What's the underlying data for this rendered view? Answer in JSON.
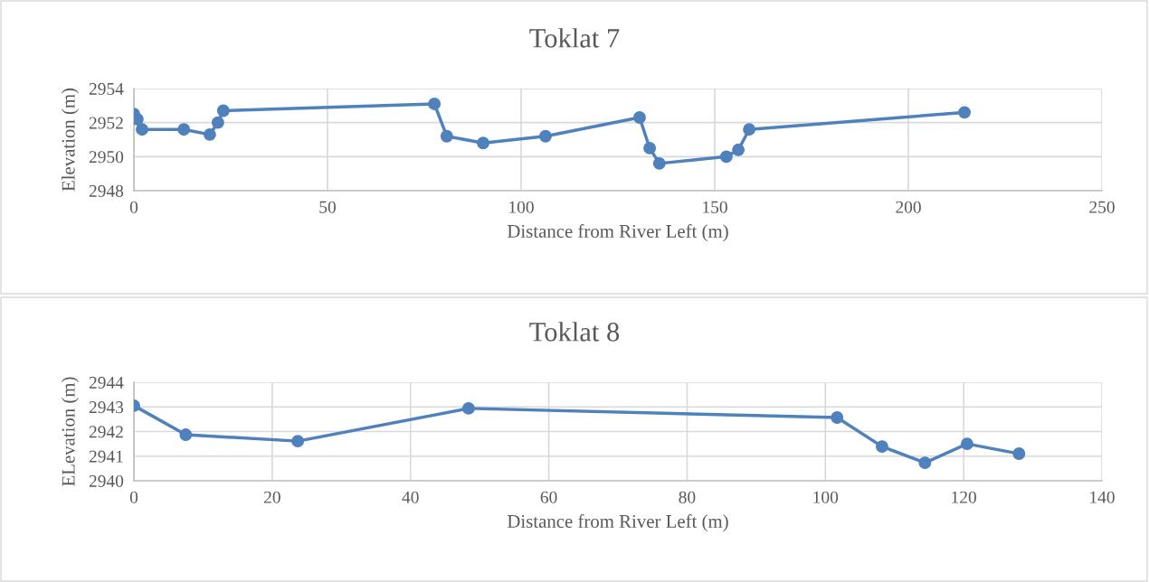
{
  "chart_data": [
    {
      "type": "line",
      "title": "Toklat 7",
      "xlabel": "Distance from River Left (m)",
      "ylabel": "Elevation (m)",
      "marker": "circle",
      "line_style": "solid",
      "grid": true,
      "legend": false,
      "xlim": [
        0,
        250
      ],
      "xticks": [
        0,
        50,
        100,
        150,
        200,
        250
      ],
      "ylim": [
        2948,
        2954
      ],
      "yticks": [
        2948,
        2950,
        2952,
        2954
      ],
      "x": [
        0,
        0.9,
        2.1,
        12.9,
        19.6,
        21.7,
        23.1,
        77.6,
        80.8,
        90.2,
        106.3,
        130.6,
        133.2,
        135.7,
        153.0,
        156.1,
        158.9,
        214.5
      ],
      "series": [
        {
          "color": "#4f81bd",
          "values": [
            2952.5,
            2952.2,
            2951.6,
            2951.6,
            2951.3,
            2952.0,
            2952.7,
            2953.1,
            2951.2,
            2950.8,
            2951.2,
            2952.3,
            2950.5,
            2949.6,
            2950.0,
            2950.4,
            2951.6,
            2952.6
          ]
        }
      ]
    },
    {
      "type": "line",
      "title": "Toklat 8",
      "xlabel": "Distance from River Left (m)",
      "ylabel": "ELevation (m)",
      "marker": "circle",
      "line_style": "solid",
      "grid": true,
      "legend": false,
      "xlim": [
        0,
        140
      ],
      "xticks": [
        0,
        20,
        40,
        60,
        80,
        100,
        120,
        140
      ],
      "ylim": [
        2940,
        2944
      ],
      "yticks": [
        2940,
        2941,
        2942,
        2943,
        2944
      ],
      "x": [
        0,
        7.5,
        23.7,
        48.4,
        101.7,
        108.2,
        114.4,
        120.5,
        128.0
      ],
      "series": [
        {
          "color": "#4f81bd",
          "values": [
            2943.05,
            2941.87,
            2941.61,
            2942.94,
            2942.57,
            2941.39,
            2940.73,
            2941.5,
            2941.1
          ]
        }
      ]
    }
  ]
}
